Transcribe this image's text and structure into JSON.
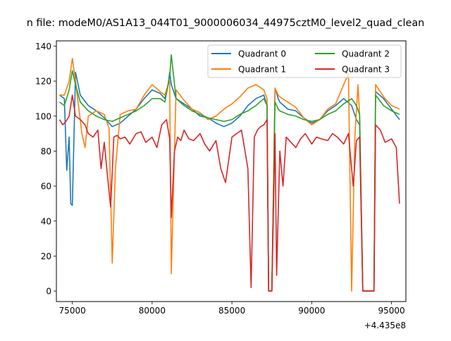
{
  "chart_data": {
    "type": "line",
    "title": "n file: modeM0/AS1A13_044T01_9000006034_44975cztM0_level2_quad_clean",
    "xlabel": "",
    "ylabel": "",
    "x_offset_label": "+4.435e8",
    "xlim": [
      74000,
      95900
    ],
    "ylim": [
      -6,
      143
    ],
    "x_ticks": [
      75000,
      80000,
      85000,
      90000,
      95000
    ],
    "x_tick_labels": [
      "75000",
      "80000",
      "85000",
      "90000",
      "95000"
    ],
    "y_ticks": [
      0,
      20,
      40,
      60,
      80,
      100,
      120,
      140
    ],
    "y_tick_labels": [
      "0",
      "20",
      "40",
      "60",
      "80",
      "100",
      "120",
      "140"
    ],
    "grid": false,
    "legend_position": "top-right",
    "series": [
      {
        "name": "Quadrant 0",
        "color": "#1f77b4",
        "x": [
          74200,
          74500,
          74650,
          74800,
          74900,
          75000,
          75200,
          75500,
          76000,
          76500,
          77000,
          77500,
          78000,
          78500,
          79000,
          79500,
          80000,
          80500,
          80800,
          81000,
          81100,
          81200,
          81500,
          82000,
          82500,
          83000,
          83500,
          84000,
          84500,
          85000,
          85500,
          86000,
          86500,
          87000,
          87200,
          87300,
          87500,
          87700,
          87900,
          88000,
          88500,
          89000,
          89500,
          90000,
          90500,
          91000,
          91500,
          92000,
          92500,
          92800,
          93000,
          93200,
          93500,
          93700,
          93900,
          94000,
          94500,
          95000,
          95500
        ],
        "values": [
          112,
          110,
          69,
          88,
          50,
          49,
          125,
          112,
          106,
          103,
          99,
          94,
          96,
          100,
          104,
          110,
          115,
          113,
          110,
          118,
          125,
          118,
          110,
          107,
          104,
          100,
          99,
          96,
          94,
          96,
          100,
          106,
          110,
          112,
          106,
          0,
          0,
          116,
          110,
          108,
          104,
          103,
          99,
          96,
          98,
          103,
          106,
          110,
          106,
          98,
          95,
          0,
          0,
          0,
          0,
          114,
          110,
          104,
          98
        ]
      },
      {
        "name": "Quadrant 1",
        "color": "#ff7f0e",
        "x": [
          74200,
          74500,
          74800,
          75000,
          75200,
          75400,
          75600,
          75800,
          76000,
          76500,
          77000,
          77300,
          77500,
          77700,
          78000,
          78500,
          79000,
          79500,
          80000,
          80500,
          80800,
          81000,
          81100,
          81200,
          81500,
          82000,
          82500,
          83000,
          83500,
          84000,
          84500,
          85000,
          85500,
          86000,
          86500,
          87000,
          87200,
          87300,
          87500,
          87700,
          87900,
          88000,
          88500,
          89000,
          89500,
          90000,
          90500,
          91000,
          91500,
          92000,
          92300,
          92500,
          92700,
          92900,
          93000,
          93200,
          93500,
          93700,
          93900,
          94000,
          94500,
          95000,
          95500
        ],
        "values": [
          112,
          112,
          120,
          133,
          120,
          105,
          90,
          82,
          100,
          103,
          101,
          93,
          16,
          70,
          101,
          103,
          104,
          112,
          118,
          114,
          112,
          118,
          120,
          10,
          115,
          109,
          104,
          102,
          98,
          100,
          104,
          107,
          111,
          116,
          118,
          115,
          110,
          0,
          0,
          116,
          112,
          111,
          108,
          105,
          99,
          95,
          98,
          104,
          107,
          118,
          124,
          0,
          88,
          118,
          100,
          0,
          0,
          0,
          0,
          118,
          111,
          106,
          104
        ]
      },
      {
        "name": "Quadrant 2",
        "color": "#2ca02c",
        "x": [
          74200,
          74500,
          74800,
          75000,
          75200,
          75500,
          76000,
          76500,
          77000,
          77500,
          78000,
          78500,
          79000,
          79500,
          80000,
          80500,
          80800,
          81000,
          81100,
          81200,
          81500,
          82000,
          82500,
          83000,
          83500,
          84000,
          84500,
          85000,
          85500,
          86000,
          86500,
          87000,
          87200,
          87300,
          87500,
          87700,
          87900,
          88000,
          88500,
          89000,
          89500,
          90000,
          90500,
          91000,
          91500,
          92000,
          92500,
          92800,
          93000,
          93200,
          93500,
          93700,
          93900,
          94000,
          94500,
          95000,
          95500
        ],
        "values": [
          108,
          106,
          115,
          126,
          118,
          108,
          103,
          100,
          98,
          97,
          99,
          101,
          103,
          106,
          110,
          110,
          108,
          118,
          123,
          135,
          110,
          106,
          103,
          101,
          99,
          98,
          97,
          98,
          101,
          103,
          106,
          110,
          106,
          0,
          0,
          108,
          104,
          103,
          101,
          100,
          98,
          97,
          98,
          101,
          103,
          107,
          110,
          106,
          101,
          0,
          0,
          0,
          0,
          112,
          106,
          103,
          101
        ]
      },
      {
        "name": "Quadrant 3",
        "color": "#d62728",
        "x": [
          74200,
          74400,
          74600,
          74800,
          75000,
          75200,
          75500,
          75800,
          76000,
          76300,
          76600,
          76800,
          77000,
          77200,
          77400,
          77600,
          77800,
          78000,
          78300,
          78600,
          79000,
          79300,
          79600,
          80000,
          80300,
          80600,
          80900,
          81100,
          81200,
          81400,
          81600,
          81800,
          82000,
          82300,
          82600,
          83000,
          83300,
          83600,
          84000,
          84300,
          84600,
          85000,
          85300,
          85600,
          86000,
          86200,
          86400,
          86600,
          86800,
          87000,
          87200,
          87300,
          87500,
          87700,
          87800,
          88000,
          88200,
          88400,
          88700,
          89000,
          89300,
          89600,
          90000,
          90300,
          90600,
          91000,
          91300,
          91600,
          92000,
          92300,
          92600,
          92800,
          93000,
          93200,
          93500,
          93700,
          93900,
          94000,
          94300,
          94600,
          95000,
          95300,
          95500
        ],
        "values": [
          98,
          95,
          97,
          100,
          112,
          100,
          98,
          95,
          90,
          88,
          92,
          70,
          85,
          66,
          48,
          88,
          89,
          87,
          88,
          84,
          90,
          91,
          85,
          88,
          82,
          95,
          98,
          87,
          42,
          80,
          88,
          86,
          92,
          87,
          86,
          90,
          84,
          80,
          86,
          70,
          62,
          88,
          90,
          92,
          70,
          2,
          88,
          92,
          94,
          95,
          98,
          0,
          0,
          90,
          9,
          80,
          60,
          88,
          85,
          82,
          87,
          90,
          84,
          88,
          87,
          86,
          90,
          88,
          84,
          90,
          60,
          86,
          88,
          0,
          0,
          0,
          0,
          95,
          92,
          85,
          87,
          82,
          50
        ]
      }
    ]
  }
}
